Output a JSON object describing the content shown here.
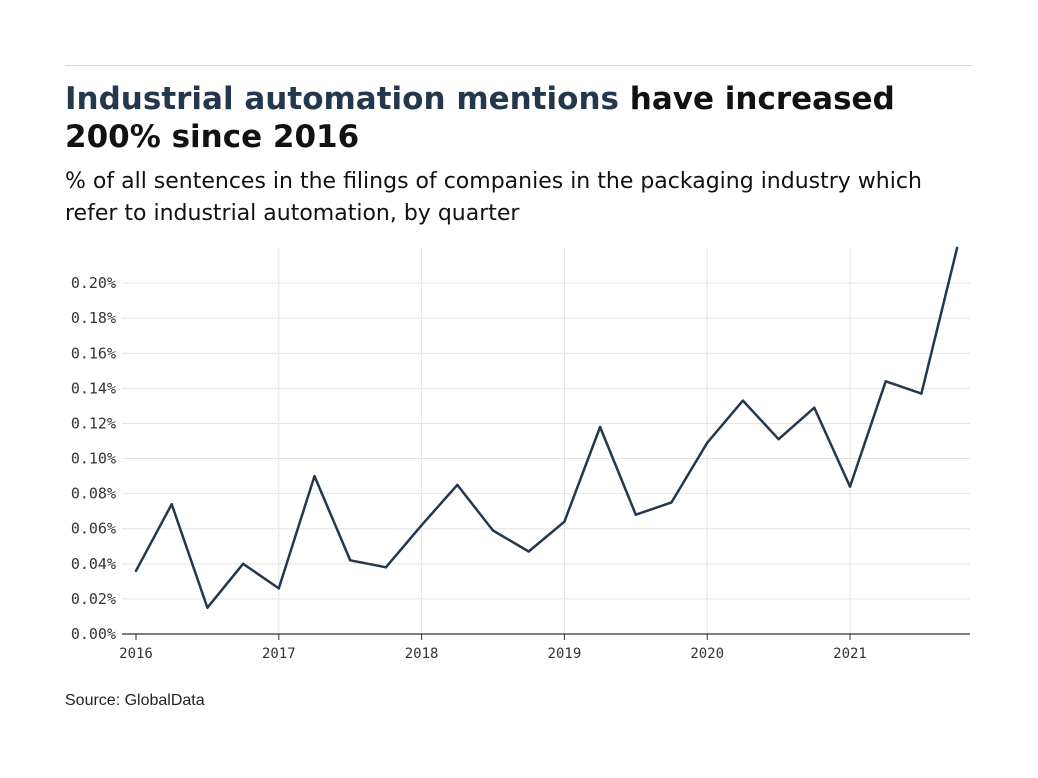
{
  "header": {
    "title_highlight": "Industrial automation mentions",
    "title_rest": " have increased 200% since 2016",
    "subtitle": "% of all sentences in the filings of companies in the packaging industry which refer to industrial automation, by quarter"
  },
  "footer": {
    "source": "Source: GlobalData"
  },
  "colors": {
    "line": "#24384d",
    "grid": "#e4e4e4",
    "axis": "#333333"
  },
  "chart_data": {
    "type": "line",
    "title": "Industrial automation mentions have increased 200% since 2016",
    "subtitle": "% of all sentences in the filings of companies in the packaging industry which refer to industrial automation, by quarter",
    "xlabel": "",
    "ylabel": "",
    "x_ticks": [
      "2016",
      "2017",
      "2018",
      "2019",
      "2020",
      "2021"
    ],
    "y_ticks": [
      "0.00%",
      "0.02%",
      "0.04%",
      "0.06%",
      "0.08%",
      "0.10%",
      "0.12%",
      "0.14%",
      "0.16%",
      "0.18%",
      "0.20%"
    ],
    "ylim": [
      0,
      0.22
    ],
    "grid": true,
    "series": [
      {
        "x": [
          "2016 Q1",
          "2016 Q2",
          "2016 Q3",
          "2016 Q4",
          "2017 Q1",
          "2017 Q2",
          "2017 Q3",
          "2017 Q4",
          "2018 Q1",
          "2018 Q2",
          "2018 Q3",
          "2018 Q4",
          "2019 Q1",
          "2019 Q2",
          "2019 Q3",
          "2019 Q4",
          "2020 Q1",
          "2020 Q2",
          "2020 Q3",
          "2020 Q4",
          "2021 Q1",
          "2021 Q2",
          "2021 Q3",
          "2021 Q4"
        ],
        "values": [
          0.036,
          0.074,
          0.015,
          0.04,
          0.026,
          0.09,
          0.042,
          0.038,
          0.062,
          0.085,
          0.059,
          0.047,
          0.064,
          0.118,
          0.068,
          0.075,
          0.109,
          0.133,
          0.111,
          0.129,
          0.084,
          0.144,
          0.137,
          0.22
        ]
      }
    ]
  }
}
